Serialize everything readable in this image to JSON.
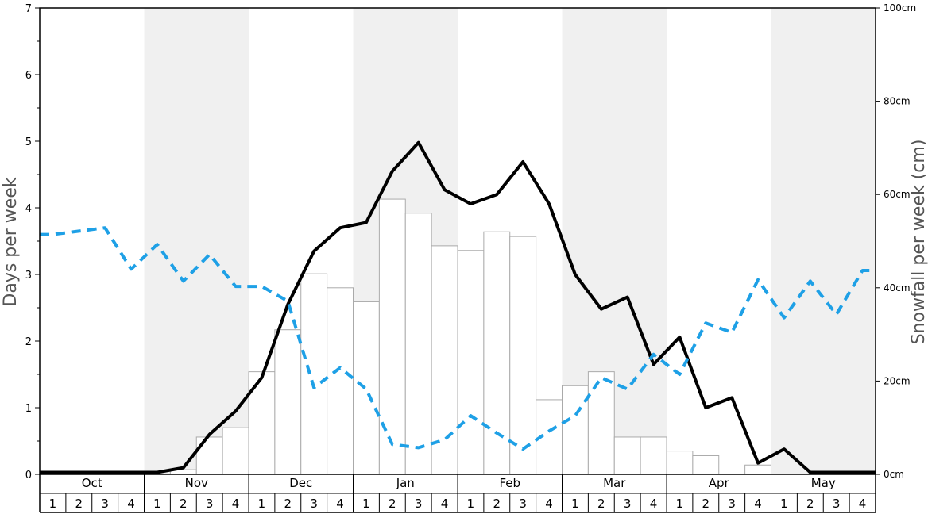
{
  "chart_data": {
    "type": "bar",
    "ylabel_left": "Days per week",
    "ylabel_right": "Snowfall per week (cm)",
    "months": [
      "Oct",
      "Nov",
      "Dec",
      "Jan",
      "Feb",
      "Mar",
      "Apr",
      "May"
    ],
    "weeks": [
      "1",
      "2",
      "3",
      "4"
    ],
    "left_ylim": [
      0,
      7
    ],
    "left_ticks": [
      "0",
      "1",
      "2",
      "3",
      "4",
      "5",
      "6",
      "7"
    ],
    "right_ylim": [
      0,
      100
    ],
    "right_ticks": [
      "0cm",
      "20cm",
      "40cm",
      "60cm",
      "80cm",
      "100cm"
    ],
    "shaded_months": [
      "Nov",
      "Jan",
      "Mar",
      "May"
    ],
    "colors": {
      "snowfall_bar_fill": "#ffffff",
      "snowfall_bar_stroke": "#aaaaaa",
      "solid_line": "#000000",
      "dashed_line": "#1ea0e6",
      "shade": "#f0f0f0"
    },
    "series": [
      {
        "kind": "bar",
        "axis": "right",
        "values": [
          0,
          0,
          0,
          0,
          0,
          1,
          8,
          10,
          22,
          31,
          43,
          40,
          37,
          59,
          56,
          49,
          48,
          52,
          51,
          16,
          19,
          22,
          8,
          8,
          5,
          4,
          0,
          2,
          0,
          0,
          0,
          0
        ]
      },
      {
        "kind": "line",
        "style": "solid",
        "axis": "left",
        "values": [
          0.03,
          0.03,
          0.03,
          0.03,
          0.03,
          0.1,
          0.6,
          0.95,
          1.45,
          2.55,
          3.35,
          3.7,
          3.78,
          4.55,
          4.98,
          4.27,
          4.06,
          4.2,
          4.69,
          4.06,
          3.0,
          2.48,
          2.66,
          1.65,
          2.06,
          1.0,
          1.15,
          0.17,
          0.38,
          0.03,
          0.03,
          0.03
        ]
      },
      {
        "kind": "line",
        "style": "dashed",
        "axis": "left",
        "values": [
          3.6,
          3.65,
          3.7,
          3.08,
          3.45,
          2.9,
          3.3,
          2.82,
          2.82,
          2.6,
          1.3,
          1.6,
          1.28,
          0.45,
          0.4,
          0.52,
          0.88,
          0.62,
          0.38,
          0.65,
          0.88,
          1.45,
          1.28,
          1.8,
          1.5,
          2.27,
          2.13,
          2.92,
          2.35,
          2.9,
          2.4,
          3.06
        ]
      }
    ]
  }
}
